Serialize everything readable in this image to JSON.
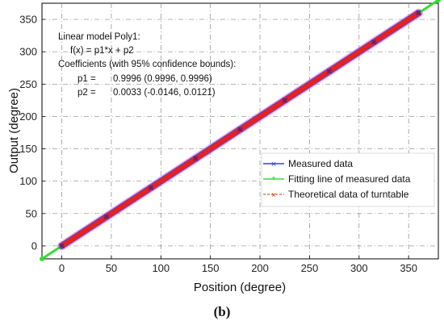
{
  "chart_data": {
    "type": "line",
    "title": "",
    "xlabel": "Position (degree)",
    "ylabel": "Output (degree)",
    "xlim": [
      -20,
      380
    ],
    "ylim": [
      -20,
      375
    ],
    "x_ticks": [
      0,
      50,
      100,
      150,
      200,
      250,
      300,
      350
    ],
    "y_ticks": [
      0,
      50,
      100,
      150,
      200,
      250,
      300,
      350
    ],
    "grid": true,
    "legend_position": "right",
    "series": [
      {
        "name": "Measured data",
        "color": "#3344cc",
        "marker": "x",
        "x": [
          0,
          45,
          90,
          135,
          180,
          225,
          270,
          315,
          360
        ],
        "y": [
          0.0,
          45.0,
          90.0,
          135.0,
          180.0,
          224.9,
          269.9,
          314.9,
          359.9
        ]
      },
      {
        "name": "Fitting line of measured data",
        "color": "#33dd33",
        "marker": "*",
        "x": [
          -20,
          380
        ],
        "y": [
          -19.99,
          379.85
        ]
      },
      {
        "name": "Theoretical data of turntable",
        "color": "#cc3300",
        "marker": "x",
        "x": [
          0,
          45,
          90,
          135,
          180,
          225,
          270,
          315,
          360
        ],
        "y": [
          0,
          45,
          90,
          135,
          180,
          225,
          270,
          315,
          360
        ]
      }
    ],
    "annotations": [
      "Linear model Poly1:",
      "f(x) = p1*x + p2",
      "Coefficients (with 95% confidence bounds):",
      "p1 =",
      "0.9996  (0.9996, 0.9996)",
      "p2 =",
      "0.0033  (-0.0146, 0.0121)"
    ],
    "caption": "(b)"
  }
}
